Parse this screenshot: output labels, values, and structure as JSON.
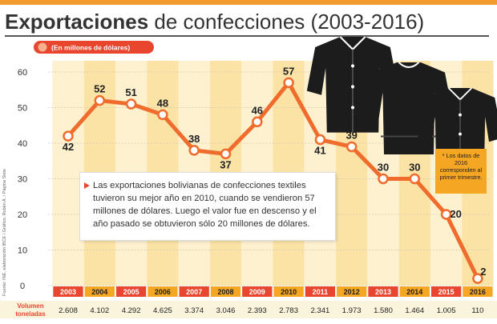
{
  "title": {
    "bold": "Exportaciones",
    "rest": "de confecciones (2003-2016)"
  },
  "chart_data": {
    "type": "line",
    "title": "Exportaciones de confecciones (2003-2016)",
    "unit_label": "(En millones de dólares)",
    "x": [
      "2003",
      "2004",
      "2005",
      "2006",
      "2007",
      "2008",
      "2009",
      "2010",
      "2011",
      "2012",
      "2013",
      "2014",
      "2015",
      "2016"
    ],
    "series": [
      {
        "name": "Exportaciones (millones de dólares)",
        "values": [
          42,
          52,
          51,
          48,
          38,
          37,
          46,
          57,
          41,
          39,
          30,
          30,
          20,
          2
        ],
        "color": "#ef6c2d"
      }
    ],
    "ylim": [
      0,
      60
    ],
    "yticks": [
      0,
      10,
      20,
      30,
      40,
      50,
      60
    ],
    "grid": true,
    "volumen": {
      "label_line1": "Volumen",
      "label_line2": "toneladas",
      "values": [
        "2.608",
        "4.102",
        "4.292",
        "4.625",
        "3.374",
        "3.046",
        "2.393",
        "2.783",
        "2.341",
        "1.973",
        "1.580",
        "1.464",
        "1.005",
        "110"
      ]
    }
  },
  "callout": {
    "text": "Las exportaciones bolivianas de confecciones textiles tuvieron su mejor año en 2010, cuando se vendieron 57 millones de dólares. Luego el valor fue en descenso y el año pasado se obtuvieron sólo 20 millones de dólares."
  },
  "footnote": {
    "text": "* Los datos de 2016 corresponden al primer trimestre."
  },
  "source": {
    "text": "Fuente: INE, elaboración IBCE / Gráfico: Rubén A. / Página Siete"
  },
  "colors": {
    "accent": "#ef6c2d",
    "band_light": "#fdf1d0",
    "band_dark": "#fbe3a6",
    "year_red": "#e8462e",
    "year_orange": "#f5a623",
    "footnote_bg": "#f5a623",
    "shirt": "#1c1c1c"
  },
  "icons": [
    "shirt-icon",
    "shirt-icon",
    "shirt-icon"
  ]
}
